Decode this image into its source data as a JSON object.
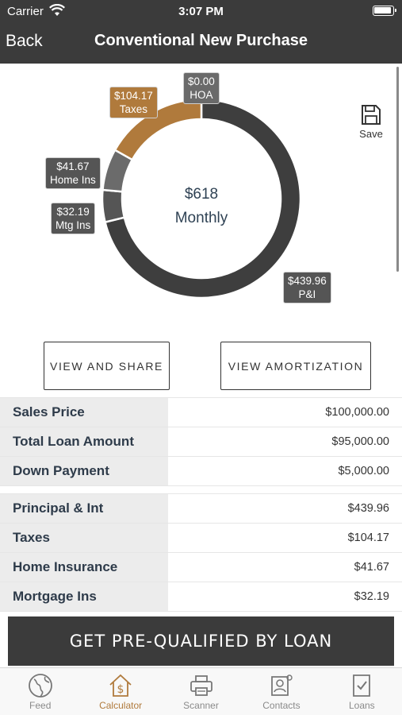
{
  "status_bar": {
    "carrier": "Carrier",
    "time": "3:07 PM"
  },
  "nav": {
    "back_label": "Back",
    "title": "Conventional New Purchase"
  },
  "save": {
    "label": "Save",
    "icon": "floppy-disk-icon"
  },
  "chart_data": {
    "type": "pie",
    "center_amount": "$618",
    "center_label": "Monthly",
    "slices": [
      {
        "label": "P&I",
        "value": 439.96,
        "value_text": "$439.96",
        "color": "#3e3e3e"
      },
      {
        "label": "Mtg Ins",
        "value": 32.19,
        "value_text": "$32.19",
        "color": "#555555"
      },
      {
        "label": "Home Ins",
        "value": 41.67,
        "value_text": "$41.67",
        "color": "#6b6b6b"
      },
      {
        "label": "Taxes",
        "value": 104.17,
        "value_text": "$104.17",
        "color": "#b07a3c"
      },
      {
        "label": "HOA",
        "value": 0.0,
        "value_text": "$0.00",
        "color": "#8a8a8a"
      }
    ]
  },
  "buttons": {
    "view_share": "VIEW AND SHARE",
    "view_amortization": "VIEW AMORTIZATION"
  },
  "table": {
    "group1": [
      {
        "label": "Sales Price",
        "value": "$100,000.00"
      },
      {
        "label": "Total Loan Amount",
        "value": "$95,000.00"
      },
      {
        "label": "Down Payment",
        "value": "$5,000.00"
      }
    ],
    "group2": [
      {
        "label": "Principal & Int",
        "value": "$439.96"
      },
      {
        "label": "Taxes",
        "value": "$104.17"
      },
      {
        "label": "Home Insurance",
        "value": "$41.67"
      },
      {
        "label": "Mortgage Ins",
        "value": "$32.19"
      }
    ]
  },
  "cta": {
    "label": "GET PRE-QUALIFIED BY LOAN"
  },
  "tabbar": {
    "active": "Calculator",
    "active_color": "#b07a3c",
    "items": [
      {
        "label": "Feed",
        "icon": "globe-icon"
      },
      {
        "label": "Calculator",
        "icon": "house-dollar-icon"
      },
      {
        "label": "Scanner",
        "icon": "printer-scanner-icon"
      },
      {
        "label": "Contacts",
        "icon": "contacts-icon"
      },
      {
        "label": "Loans",
        "icon": "document-check-icon"
      }
    ]
  }
}
